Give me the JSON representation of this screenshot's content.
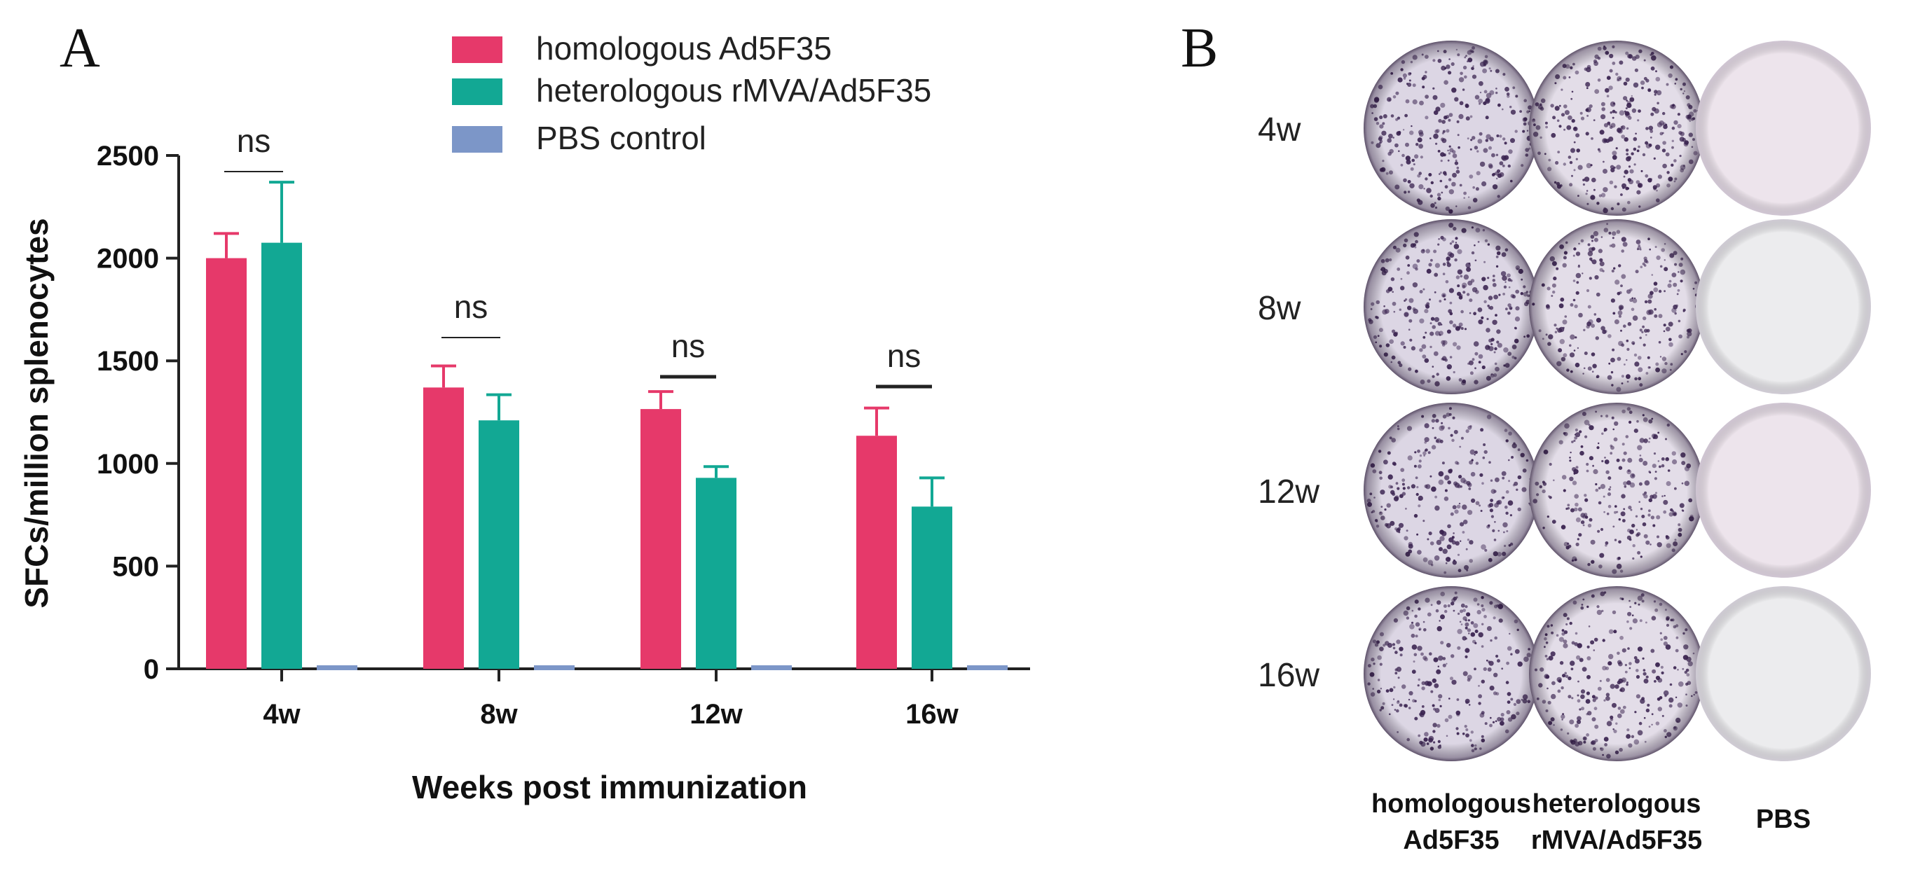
{
  "panel_a": {
    "letter": "A",
    "chart_data": {
      "type": "bar",
      "title": "",
      "xlabel": "Weeks post immunization",
      "ylabel": "SFCs/million splenocytes",
      "categories": [
        "4w",
        "8w",
        "12w",
        "16w"
      ],
      "ylim": [
        0,
        2500
      ],
      "yticks": [
        0,
        500,
        1000,
        1500,
        2000,
        2500
      ],
      "legend_position": "top",
      "series": [
        {
          "name": "homologous Ad5F35",
          "color": "#e6396a",
          "values": [
            2000,
            1370,
            1265,
            1135
          ],
          "errors": [
            120,
            105,
            85,
            135
          ]
        },
        {
          "name": "heterologous rMVA/Ad5F35",
          "color": "#12a894",
          "values": [
            2075,
            1210,
            930,
            790
          ],
          "errors": [
            295,
            125,
            55,
            140
          ]
        },
        {
          "name": "PBS control",
          "color": "#7c96c8",
          "values": [
            0,
            0,
            0,
            0
          ],
          "errors": [
            0,
            0,
            0,
            0
          ]
        }
      ],
      "annotations": [
        "ns",
        "ns",
        "ns",
        "ns"
      ]
    }
  },
  "panel_b": {
    "letter": "B",
    "rows": [
      "4w",
      "8w",
      "12w",
      "16w"
    ],
    "columns": [
      "homologous Ad5F35",
      "heterologous rMVA/Ad5F35",
      "PBS"
    ],
    "column_labels": [
      [
        "homologous",
        "Ad5F35"
      ],
      [
        "heterologous",
        "rMVA/Ad5F35"
      ],
      [
        "PBS"
      ]
    ],
    "well_bg_colors": [
      "#dcd6e4",
      "#e3dde8",
      "#e8e2ea"
    ],
    "pbs_colors": [
      "#ede4ec",
      "#ececee",
      "#ede4ec",
      "#ececee"
    ],
    "spot_color": "#3a2350"
  }
}
